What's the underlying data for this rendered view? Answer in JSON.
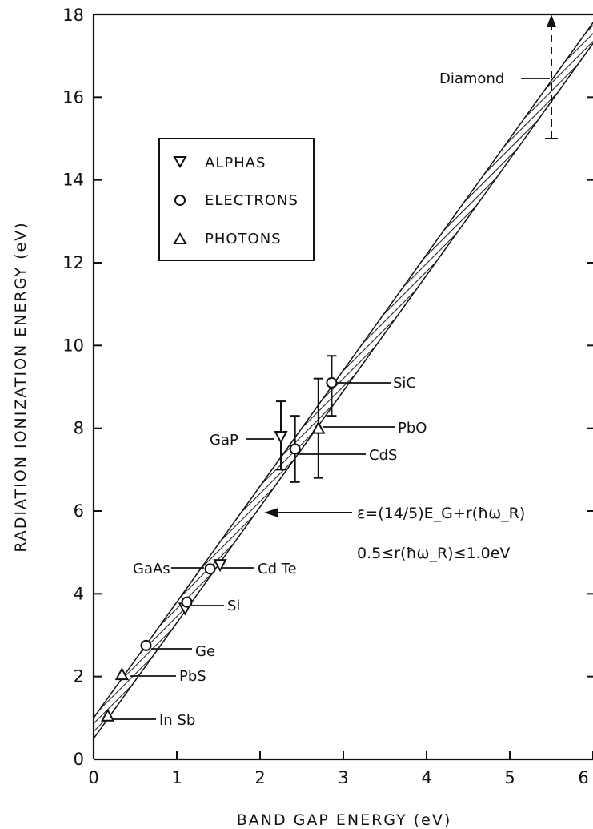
{
  "chart_data": {
    "type": "scatter",
    "title": "",
    "xlabel": "BAND GAP ENERGY (eV)",
    "ylabel": "RADIATION IONIZATION ENERGY (eV)",
    "xlim": [
      0,
      6
    ],
    "ylim": [
      0,
      18
    ],
    "x_ticks": [
      0,
      1,
      2,
      3,
      4,
      5,
      6
    ],
    "x_tick_labels": [
      "0",
      "1",
      "2",
      "3",
      "4",
      "5",
      "6"
    ],
    "y_ticks": [
      0,
      2,
      4,
      6,
      8,
      10,
      12,
      14,
      16,
      18
    ],
    "y_tick_labels": [
      "0",
      "2",
      "4",
      "6",
      "8",
      "10",
      "12",
      "14",
      "16",
      "18"
    ],
    "grid": false,
    "legend_position": "upper-left",
    "legend": [
      {
        "symbol": "triangle-down",
        "label": "ALPHAS"
      },
      {
        "symbol": "circle",
        "label": "ELECTRONS"
      },
      {
        "symbol": "triangle-up",
        "label": "PHOTONS"
      }
    ],
    "series": [
      {
        "name": "ALPHAS",
        "marker": "triangle-down",
        "points": [
          {
            "x": 2.25,
            "y": 7.8,
            "yerr_low": 7.0,
            "yerr_high": 8.65
          },
          {
            "x": 1.52,
            "y": 4.7
          },
          {
            "x": 1.1,
            "y": 3.65
          }
        ]
      },
      {
        "name": "ELECTRONS",
        "marker": "circle",
        "points": [
          {
            "x": 2.86,
            "y": 9.1,
            "yerr_low": 8.3,
            "yerr_high": 9.75
          },
          {
            "x": 2.42,
            "y": 7.5,
            "yerr_low": 6.7,
            "yerr_high": 8.3
          },
          {
            "x": 1.4,
            "y": 4.6
          },
          {
            "x": 1.12,
            "y": 3.8
          },
          {
            "x": 0.63,
            "y": 2.75
          }
        ]
      },
      {
        "name": "PHOTONS",
        "marker": "triangle-up",
        "points": [
          {
            "x": 2.7,
            "y": 8.0,
            "yerr_low": 6.8,
            "yerr_high": 9.2
          },
          {
            "x": 0.34,
            "y": 2.05
          },
          {
            "x": 0.17,
            "y": 1.05
          }
        ]
      }
    ],
    "fit_band": {
      "slope": 2.8,
      "intercept_low": 0.5,
      "intercept_high": 1.0
    },
    "diamond_range": {
      "x": 5.5,
      "y_low": 15.0,
      "y_high": 18.0
    },
    "annotations": [
      {
        "text": "Diamond",
        "x": 5.5,
        "y": 16.5
      },
      {
        "text": "SiC",
        "x": 2.86,
        "y": 9.1
      },
      {
        "text": "PbO",
        "x": 2.7,
        "y": 8.0
      },
      {
        "text": "GaP",
        "x": 2.25,
        "y": 7.8
      },
      {
        "text": "CdS",
        "x": 2.42,
        "y": 7.4
      },
      {
        "text": "GaAs",
        "x": 1.4,
        "y": 4.6
      },
      {
        "text": "Cd Te",
        "x": 1.52,
        "y": 4.6
      },
      {
        "text": "Si",
        "x": 1.1,
        "y": 3.7
      },
      {
        "text": "Ge",
        "x": 0.63,
        "y": 2.75
      },
      {
        "text": "PbS",
        "x": 0.34,
        "y": 2.05
      },
      {
        "text": "In Sb",
        "x": 0.17,
        "y": 1.05
      }
    ],
    "equation_line1": "ε=(14/5)E_G+r(ħω_R)",
    "equation_line2": "0.5≤r(ħω_R)≤1.0eV"
  }
}
